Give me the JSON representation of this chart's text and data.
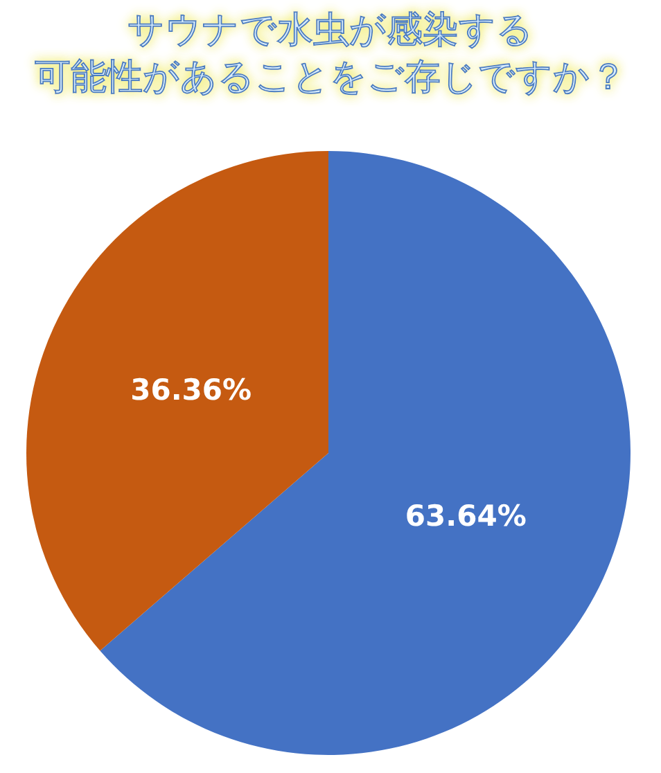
{
  "chart_data": {
    "type": "pie",
    "title": "サウナで水虫が感染する可能性があることをご存じですか？",
    "categories": [
      null,
      null
    ],
    "values": [
      63.64,
      36.36
    ],
    "colors": [
      "#4472c4",
      "#c55a11"
    ],
    "value_labels": [
      "63.64%",
      "36.36%"
    ],
    "legend": false
  }
}
